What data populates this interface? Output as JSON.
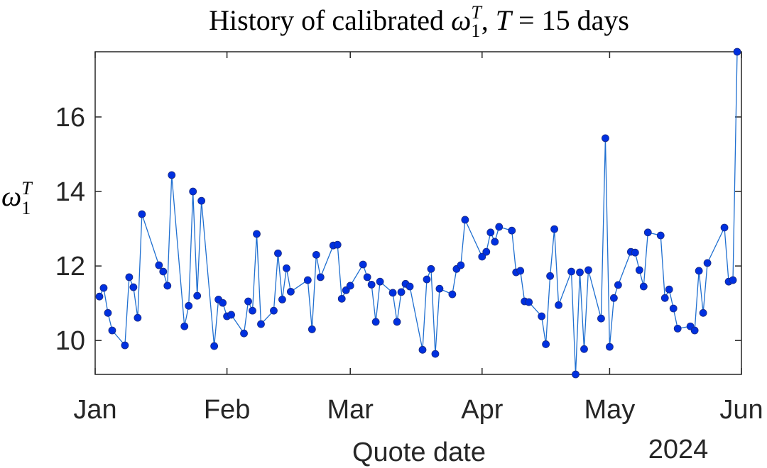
{
  "chart_data": {
    "type": "line",
    "title": [
      "History of calibrated ",
      "ω",
      "1",
      "T",
      ", ",
      "T",
      " = 15 days"
    ],
    "ylabel": [
      "ω",
      "1",
      "T"
    ],
    "xlabel": "Quote date",
    "annotation": "2024",
    "xlim": [
      0,
      152
    ],
    "ylim": [
      9.09,
      17.75
    ],
    "xticks": [
      {
        "value": 0,
        "label": "Jan"
      },
      {
        "value": 31,
        "label": "Feb"
      },
      {
        "value": 60,
        "label": "Mar"
      },
      {
        "value": 91,
        "label": "Apr"
      },
      {
        "value": 121,
        "label": "May"
      },
      {
        "value": 152,
        "label": "Jun"
      }
    ],
    "yticks": [
      10,
      12,
      14,
      16
    ],
    "grid": false,
    "series": [
      {
        "color": "#1f6fd0",
        "marker_color": "#0030e0",
        "x": [
          1,
          2,
          3,
          4,
          7,
          8,
          9,
          10,
          11,
          15,
          16,
          17,
          18,
          21,
          22,
          23,
          24,
          25,
          28,
          29,
          30,
          31,
          32,
          35,
          36,
          37,
          38,
          39,
          42,
          43,
          44,
          45,
          46,
          50,
          51,
          52,
          53,
          56,
          57,
          58,
          59,
          60,
          63,
          64,
          65,
          66,
          67,
          70,
          71,
          72,
          73,
          74,
          77,
          78,
          79,
          80,
          81,
          84,
          85,
          86,
          87,
          91,
          92,
          93,
          94,
          95,
          98,
          99,
          100,
          101,
          102,
          105,
          106,
          107,
          108,
          109,
          112,
          113,
          114,
          115,
          116,
          119,
          120,
          121,
          122,
          123,
          126,
          127,
          128,
          129,
          130,
          133,
          134,
          135,
          136,
          137,
          140,
          141,
          142,
          143,
          144,
          148,
          149,
          150,
          151
        ],
        "values": [
          11.18,
          11.41,
          10.74,
          10.27,
          9.87,
          11.7,
          11.43,
          10.61,
          13.39,
          12.02,
          11.85,
          11.47,
          14.44,
          10.38,
          10.93,
          14.0,
          11.2,
          13.75,
          9.85,
          11.1,
          11.01,
          10.65,
          10.69,
          10.19,
          11.05,
          10.8,
          12.86,
          10.44,
          10.8,
          12.34,
          11.1,
          11.94,
          11.31,
          11.62,
          10.3,
          12.3,
          11.7,
          12.55,
          12.57,
          11.12,
          11.35,
          11.47,
          12.04,
          11.7,
          11.5,
          10.5,
          11.58,
          11.28,
          10.5,
          11.3,
          11.52,
          11.45,
          9.75,
          11.64,
          11.92,
          9.64,
          11.39,
          11.24,
          11.92,
          12.02,
          13.24,
          12.25,
          12.38,
          12.9,
          12.65,
          13.05,
          12.95,
          11.83,
          11.87,
          11.05,
          11.03,
          10.65,
          9.9,
          11.73,
          12.99,
          10.95,
          11.85,
          9.09,
          11.83,
          9.77,
          11.89,
          10.59,
          15.43,
          9.83,
          11.14,
          11.49,
          12.38,
          12.36,
          11.89,
          11.45,
          12.9,
          12.82,
          11.14,
          11.37,
          10.86,
          10.32,
          10.38,
          10.27,
          11.87,
          10.74,
          12.08,
          13.03,
          11.58,
          11.62,
          17.75
        ]
      }
    ]
  }
}
